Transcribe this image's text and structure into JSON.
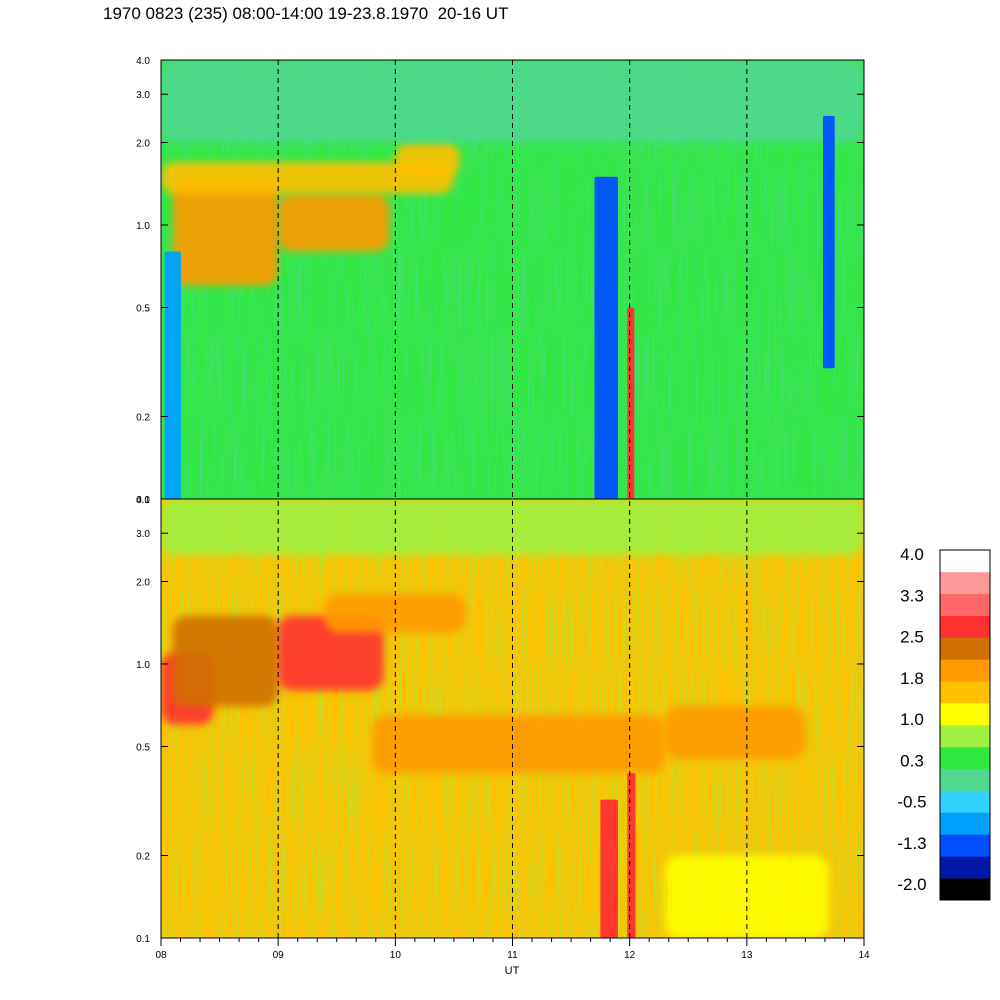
{
  "title": "1970 0823 (235) 08:00-14:00 19-23.8.1970  20-16 UT",
  "chart_data": {
    "type": "heatmap",
    "xlabel": "UT",
    "x_ticks": [
      "08",
      "09",
      "10",
      "11",
      "12",
      "13",
      "14"
    ],
    "xlim": [
      8,
      14
    ],
    "y_scale": "log",
    "ylim": [
      0.1,
      4.0
    ],
    "y_ticks": [
      "0.1",
      "0.2",
      "0.5",
      "1.0",
      "2.0",
      "3.0",
      "4.0"
    ],
    "vertical_dashed_lines_at": [
      9,
      10,
      11,
      12,
      13
    ],
    "panels": [
      {
        "name": "upper",
        "background_level": 0.6,
        "features": [
          {
            "x": [
              8.1,
              9.0
            ],
            "y": [
              0.6,
              1.5
            ],
            "level": 1.9
          },
          {
            "x": [
              9.0,
              9.95
            ],
            "y": [
              0.8,
              1.3
            ],
            "level": 2.0
          },
          {
            "x": [
              8.0,
              10.5
            ],
            "y": [
              1.3,
              1.7
            ],
            "level": 1.4
          },
          {
            "x": [
              10.0,
              10.55
            ],
            "y": [
              1.5,
              2.0
            ],
            "level": 1.6
          },
          {
            "x": [
              8.0,
              14.0
            ],
            "y": [
              2.0,
              4.0
            ],
            "level": 0.1
          },
          {
            "x": [
              8.03,
              8.17
            ],
            "y": [
              0.1,
              0.8
            ],
            "level": -0.6
          },
          {
            "x": [
              11.7,
              11.9
            ],
            "y": [
              0.1,
              1.5
            ],
            "level": -1.2
          },
          {
            "x": [
              11.98,
              12.04
            ],
            "y": [
              0.1,
              0.5
            ],
            "level": 2.5
          },
          {
            "x": [
              13.65,
              13.75
            ],
            "y": [
              0.3,
              2.5
            ],
            "level": -0.9
          }
        ]
      },
      {
        "name": "lower",
        "background_level": 1.65,
        "features": [
          {
            "x": [
              8.0,
              8.45
            ],
            "y": [
              0.6,
              1.1
            ],
            "level": 2.7
          },
          {
            "x": [
              8.1,
              9.0
            ],
            "y": [
              0.7,
              1.5
            ],
            "level": 2.3
          },
          {
            "x": [
              9.0,
              9.9
            ],
            "y": [
              0.8,
              1.5
            ],
            "level": 2.6
          },
          {
            "x": [
              9.4,
              10.6
            ],
            "y": [
              1.3,
              1.8
            ],
            "level": 2.1
          },
          {
            "x": [
              9.8,
              12.3
            ],
            "y": [
              0.4,
              0.65
            ],
            "level": 2.0
          },
          {
            "x": [
              12.3,
              13.5
            ],
            "y": [
              0.45,
              0.7
            ],
            "level": 2.0
          },
          {
            "x": [
              8.0,
              14.0
            ],
            "y": [
              2.5,
              4.0
            ],
            "level": 0.9
          },
          {
            "x": [
              11.75,
              11.9
            ],
            "y": [
              0.1,
              0.32
            ],
            "level": 2.8
          },
          {
            "x": [
              11.98,
              12.05
            ],
            "y": [
              0.1,
              0.4
            ],
            "level": 2.8
          },
          {
            "x": [
              12.3,
              13.7
            ],
            "y": [
              0.1,
              0.2
            ],
            "level": 1.0
          }
        ]
      }
    ],
    "colorbar": {
      "labels": [
        "4.0",
        "3.3",
        "2.5",
        "1.8",
        "1.0",
        "0.3",
        "-0.5",
        "-1.3",
        "-2.0"
      ],
      "min": -2.0,
      "max": 4.0,
      "colors": [
        "#000000",
        "#0018a8",
        "#0050ff",
        "#00a0ff",
        "#30d0ff",
        "#50d890",
        "#30e840",
        "#a0f040",
        "#ffff00",
        "#ffc000",
        "#ff9a00",
        "#d07000",
        "#ff3030",
        "#ff6868",
        "#ff9898",
        "#ffffff"
      ]
    }
  }
}
